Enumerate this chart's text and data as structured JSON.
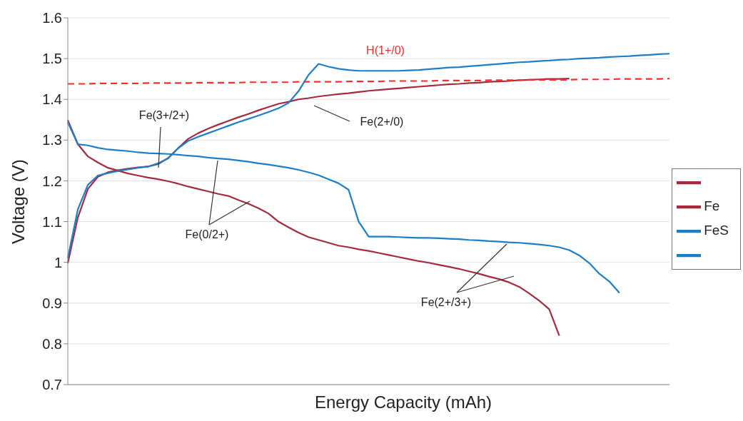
{
  "chart_data": {
    "type": "line",
    "xlabel": "Energy Capacity (mAh)",
    "ylabel": "Voltage (V)",
    "categories": [
      null,
      null,
      null,
      null,
      null,
      null,
      null,
      null,
      null,
      null,
      null,
      null,
      null,
      null,
      null,
      null,
      null,
      null,
      null,
      null,
      null,
      null,
      null,
      null,
      null,
      null,
      null,
      null,
      null,
      null,
      null,
      null,
      null,
      null,
      null,
      null,
      null,
      null,
      null,
      null,
      null,
      null,
      null,
      null,
      null,
      null,
      null,
      null,
      null,
      null,
      null,
      null,
      null,
      null,
      null,
      null,
      null,
      null,
      null,
      null,
      null
    ],
    "ylim": [
      0.7,
      1.6
    ],
    "yticks": [
      0.7,
      0.8,
      0.9,
      1,
      1.1,
      1.2,
      1.3,
      1.4,
      1.5,
      1.6
    ],
    "grid": "y",
    "legend": "right",
    "line_style": "solid",
    "series": [
      {
        "color": "#a8283e",
        "values": [
          0.998,
          1.11,
          1.18,
          1.21,
          1.221,
          1.226,
          1.23,
          1.233,
          1.235,
          1.241,
          1.256,
          1.28,
          1.303,
          1.317,
          1.328,
          1.338,
          1.347,
          1.356,
          1.364,
          1.373,
          1.381,
          1.389,
          1.394,
          1.4,
          1.403,
          1.407,
          1.41,
          1.413,
          1.415,
          1.418,
          1.421,
          1.423,
          1.425,
          1.427,
          1.429,
          1.431,
          1.433,
          1.435,
          1.437,
          1.438,
          1.44,
          1.441,
          1.443,
          1.444,
          1.445,
          1.447,
          1.448,
          1.449,
          1.45,
          1.45,
          1.451,
          null,
          null,
          null,
          null,
          null,
          null,
          null,
          null,
          null,
          null
        ]
      },
      {
        "name": "Fe",
        "color": "#a8283e",
        "values": [
          1.349,
          1.29,
          1.26,
          1.245,
          1.232,
          1.225,
          1.218,
          1.213,
          1.208,
          1.204,
          1.199,
          1.193,
          1.186,
          1.18,
          1.174,
          1.168,
          1.163,
          1.153,
          1.144,
          1.133,
          1.12,
          1.1,
          1.086,
          1.073,
          1.062,
          1.055,
          1.048,
          1.041,
          1.037,
          1.032,
          1.028,
          1.023,
          1.018,
          1.013,
          1.008,
          1.003,
          0.999,
          0.994,
          0.989,
          0.984,
          0.978,
          0.972,
          0.965,
          0.959,
          0.951,
          0.94,
          0.924,
          0.906,
          0.885,
          0.82,
          null,
          null,
          null,
          null,
          null,
          null,
          null,
          null,
          null,
          null,
          null
        ]
      },
      {
        "name": "FeS",
        "color": "#1a7fc8",
        "values": [
          1.344,
          1.29,
          1.287,
          1.281,
          1.277,
          1.275,
          1.273,
          1.27,
          1.268,
          1.267,
          1.266,
          1.264,
          1.262,
          1.26,
          1.257,
          1.255,
          1.253,
          1.25,
          1.247,
          1.243,
          1.24,
          1.236,
          1.232,
          1.227,
          1.221,
          1.214,
          1.204,
          1.194,
          1.178,
          1.1,
          1.063,
          1.063,
          1.063,
          1.062,
          1.061,
          1.06,
          1.06,
          1.059,
          1.058,
          1.057,
          1.055,
          1.054,
          1.052,
          1.051,
          1.049,
          1.048,
          1.046,
          1.044,
          1.041,
          1.037,
          1.03,
          1.017,
          0.998,
          0.972,
          0.953,
          0.925,
          null,
          null,
          null,
          null,
          null
        ]
      },
      {
        "color": "#1a7fc8",
        "values": [
          1.01,
          1.13,
          1.19,
          1.213,
          1.219,
          1.224,
          1.228,
          1.232,
          1.235,
          1.243,
          1.255,
          1.28,
          1.298,
          1.308,
          1.317,
          1.326,
          1.335,
          1.344,
          1.352,
          1.36,
          1.369,
          1.378,
          1.391,
          1.42,
          1.46,
          1.487,
          1.48,
          1.475,
          1.472,
          1.47,
          1.47,
          1.47,
          1.47,
          1.47,
          1.471,
          1.472,
          1.474,
          1.476,
          1.478,
          1.479,
          1.481,
          1.483,
          1.485,
          1.487,
          1.489,
          1.491,
          1.492,
          1.494,
          1.495,
          1.497,
          1.498,
          1.5,
          1.501,
          1.502,
          1.504,
          1.505,
          1.506,
          1.508,
          1.509,
          1.511,
          1.512
        ]
      },
      {
        "color": "#ff2a2a",
        "line_style": "dashed",
        "values": [
          1.438,
          1.438,
          1.438,
          1.439,
          1.439,
          1.439,
          1.439,
          1.439,
          1.44,
          1.44,
          1.44,
          1.44,
          1.44,
          1.441,
          1.441,
          1.441,
          1.441,
          1.441,
          1.442,
          1.442,
          1.442,
          1.442,
          1.442,
          1.443,
          1.443,
          1.443,
          1.443,
          1.443,
          1.444,
          1.444,
          1.444,
          1.444,
          1.445,
          1.445,
          1.445,
          1.445,
          1.445,
          1.446,
          1.446,
          1.446,
          1.446,
          1.446,
          1.447,
          1.447,
          1.447,
          1.447,
          1.448,
          1.448,
          1.448,
          1.448,
          1.448,
          1.449,
          1.449,
          1.449,
          1.449,
          1.45,
          1.45,
          1.45,
          1.45,
          1.45,
          1.451
        ]
      }
    ],
    "annotations": [
      "Fe(3+/2+)",
      "Fe(2+/0)",
      "Fe(0/2+)",
      "Fe(2+/3+)",
      "H(1+/0)"
    ]
  }
}
